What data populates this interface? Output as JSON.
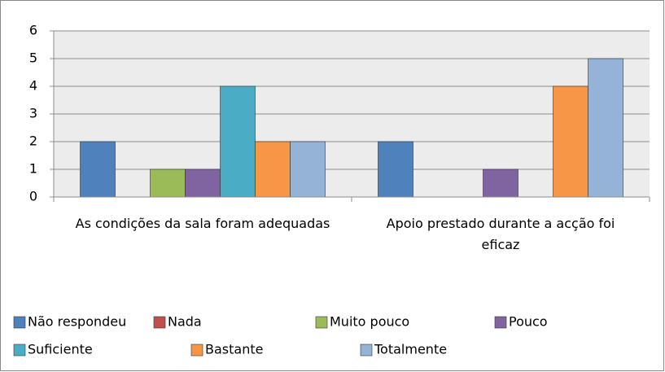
{
  "chart_data": {
    "type": "bar",
    "categories": [
      "As condições da sala foram adequadas",
      "Apoio prestado durante a acção foi eficaz"
    ],
    "series": [
      {
        "name": "Não respondeu",
        "color": "#4f81bd",
        "values": [
          2,
          2
        ]
      },
      {
        "name": "Nada",
        "color": "#c0504d",
        "values": [
          0,
          0
        ]
      },
      {
        "name": "Muito pouco",
        "color": "#9bbb59",
        "values": [
          1,
          0
        ]
      },
      {
        "name": "Pouco",
        "color": "#8064a2",
        "values": [
          1,
          1
        ]
      },
      {
        "name": "Suficiente",
        "color": "#4bacc6",
        "values": [
          4,
          0
        ]
      },
      {
        "name": "Bastante",
        "color": "#f79646",
        "values": [
          2,
          4
        ]
      },
      {
        "name": "Totalmente",
        "color": "#95b3d7",
        "values": [
          2,
          5
        ]
      }
    ],
    "ylim": [
      0,
      6
    ],
    "yticks": [
      0,
      1,
      2,
      3,
      4,
      5,
      6
    ],
    "grid": true,
    "legend": "bottom"
  }
}
